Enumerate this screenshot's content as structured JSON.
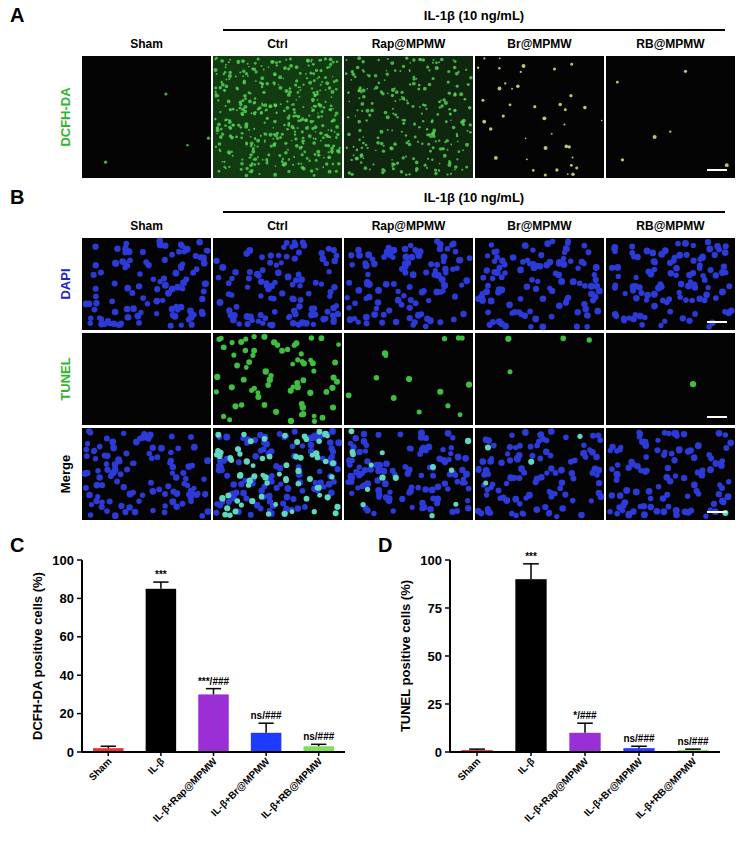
{
  "panels": {
    "A": {
      "label": "A",
      "header": "IL-1β (10 ng/mL)",
      "columns": [
        "Sham",
        "Ctrl",
        "Rap@MPMW",
        "Br@MPMW",
        "RB@MPMW"
      ],
      "rows": [
        "DCFH-DA"
      ]
    },
    "B": {
      "label": "B",
      "header": "IL-1β (10 ng/mL)",
      "columns": [
        "Sham",
        "Ctrl",
        "Rap@MPMW",
        "Br@MPMW",
        "RB@MPMW"
      ],
      "rows": [
        "DAPI",
        "TUNEL",
        "Merge"
      ]
    },
    "C": {
      "label": "C"
    },
    "D": {
      "label": "D"
    }
  },
  "chart_data": [
    {
      "type": "bar",
      "y_label": "DCFH-DA positive cells (%)",
      "categories": [
        "Sham",
        "IL-β",
        "IL-β+Rap@MPMW",
        "IL-β+Br@MPMW",
        "IL-β+RB@MPMW"
      ],
      "values": [
        2,
        85,
        30,
        10,
        3
      ],
      "errors": [
        1,
        3.5,
        3,
        5,
        1
      ],
      "colors": [
        "#e8322f",
        "#000000",
        "#9b2fd6",
        "#1e3cff",
        "#7ee05a"
      ],
      "annotations": [
        null,
        "***",
        "***/###",
        "ns/###",
        "ns/###"
      ],
      "ylim": [
        0,
        100
      ],
      "yticks": [
        0,
        20,
        40,
        60,
        80,
        100
      ],
      "grid": false
    },
    {
      "type": "bar",
      "y_label": "TUNEL positive cells (%)",
      "categories": [
        "Sham",
        "IL-β",
        "IL-β+Rap@MPMW",
        "IL-β+Br@MPMW",
        "IL-β+RB@MPMW"
      ],
      "values": [
        1,
        90,
        10,
        2,
        1
      ],
      "errors": [
        0.5,
        8,
        5,
        1,
        0.5
      ],
      "colors": [
        "#e8322f",
        "#000000",
        "#9b2fd6",
        "#1e3cff",
        "#7ee05a"
      ],
      "annotations": [
        null,
        "***",
        "*/###",
        "ns/###",
        "ns/###"
      ],
      "ylim": [
        0,
        100
      ],
      "yticks": [
        0,
        25,
        50,
        75,
        100
      ],
      "grid": false
    }
  ]
}
